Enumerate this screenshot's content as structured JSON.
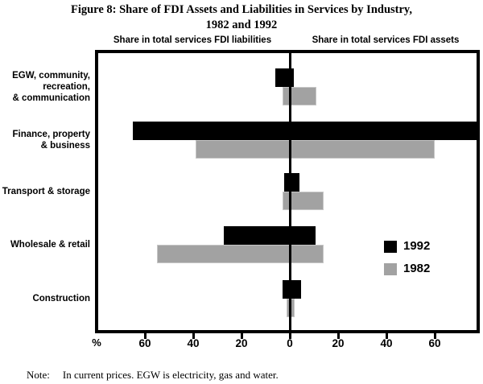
{
  "figure": {
    "title_line1": "Figure 8: Share of FDI Assets and Liabilities in Services by Industry,",
    "title_line2": "1982 and 1992"
  },
  "chart_data": {
    "type": "bar",
    "orientation": "horizontal-diverging",
    "left_header": "Share in total services FDI liabilities",
    "right_header": "Share in total services FDI assets",
    "unit_label": "%",
    "axis_ticks": [
      -60,
      -40,
      -20,
      0,
      20,
      40,
      60
    ],
    "xlim": [
      -80,
      78
    ],
    "grid": false,
    "legend_position": "inside-right",
    "categories": [
      {
        "id": "egw",
        "label_lines": [
          "EGW, community,",
          "recreation,",
          "& communication"
        ]
      },
      {
        "id": "finance",
        "label_lines": [
          "Finance, property",
          "& business"
        ]
      },
      {
        "id": "transport",
        "label_lines": [
          "Transport & storage"
        ]
      },
      {
        "id": "wholesale",
        "label_lines": [
          "Wholesale & retail"
        ]
      },
      {
        "id": "construction",
        "label_lines": [
          "Construction"
        ]
      }
    ],
    "series": [
      {
        "name": "1992",
        "color": "#000000",
        "liabilities": [
          6,
          65,
          2.5,
          27.5,
          3
        ],
        "assets": [
          1.5,
          78,
          4,
          10.5,
          4.5
        ]
      },
      {
        "name": "1982",
        "color": "#a2a2a2",
        "liabilities": [
          3,
          39,
          3,
          55,
          1.5
        ],
        "assets": [
          11,
          60,
          14,
          14,
          2
        ]
      }
    ]
  },
  "note": {
    "label": "Note:",
    "text": "In current prices. EGW is electricity, gas and water."
  }
}
